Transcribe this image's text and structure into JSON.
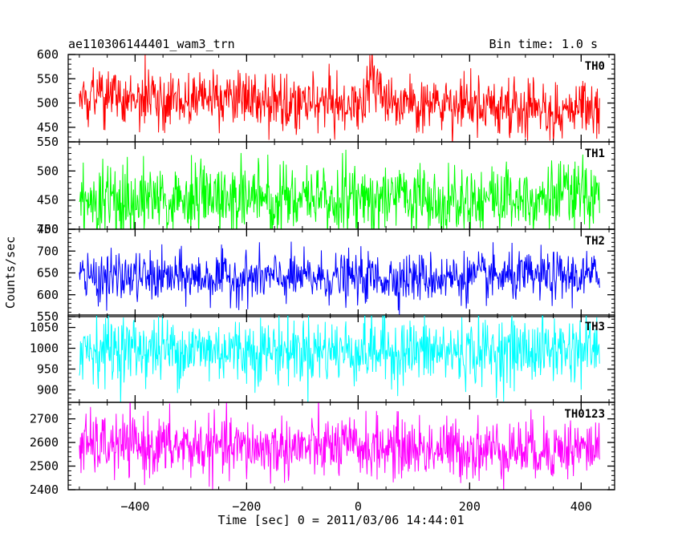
{
  "header": {
    "title": "ae110306144401_wam3_trn",
    "bin_time": "Bin time: 1.0 s"
  },
  "axes": {
    "ylabel": "Counts/sec",
    "xlabel": "Time [sec] 0 = 2011/03/06 14:44:01"
  },
  "chart_data": {
    "type": "line",
    "title": "ae110306144401_wam3_trn",
    "xlabel": "Time [sec] 0 = 2011/03/06 14:44:01",
    "ylabel": "Counts/sec",
    "xlim": [
      -520,
      460
    ],
    "data_range": [
      -500,
      433
    ],
    "bin_time_sec": 1.0,
    "xticks_major": [
      -400,
      -200,
      0,
      200,
      400
    ],
    "panels": [
      {
        "name": "TH0",
        "color": "#ff0000",
        "ylim": [
          420,
          600
        ],
        "yticks": [
          450,
          500,
          550,
          600
        ],
        "baseline": 505,
        "noise": 28,
        "trend": [
          [
            -500,
            510
          ],
          [
            -400,
            512
          ],
          [
            -250,
            505
          ],
          [
            -100,
            500
          ],
          [
            0,
            500
          ],
          [
            25,
            540
          ],
          [
            50,
            495
          ],
          [
            200,
            490
          ],
          [
            433,
            485
          ]
        ],
        "burst": {
          "t": 25,
          "peak": 595
        }
      },
      {
        "name": "TH1",
        "color": "#00ff00",
        "ylim": [
          400,
          550
        ],
        "yticks": [
          400,
          450,
          500,
          550
        ],
        "baseline": 455,
        "noise": 30,
        "trend": [
          [
            -500,
            450
          ],
          [
            -200,
            452
          ],
          [
            0,
            455
          ],
          [
            200,
            455
          ],
          [
            433,
            458
          ]
        ],
        "burst": null
      },
      {
        "name": "TH2",
        "color": "#0000ff",
        "ylim": [
          550,
          750
        ],
        "yticks": [
          550,
          600,
          650,
          700,
          750
        ],
        "baseline": 640,
        "noise": 28,
        "trend": [
          [
            -500,
            640
          ],
          [
            0,
            638
          ],
          [
            433,
            642
          ]
        ],
        "burst": null
      },
      {
        "name": "TH3",
        "color": "#00ffff",
        "ylim": [
          870,
          1080
        ],
        "yticks": [
          900,
          950,
          1000,
          1050
        ],
        "baseline": 995,
        "noise": 40,
        "trend": [
          [
            -500,
            1000
          ],
          [
            -200,
            995
          ],
          [
            0,
            995
          ],
          [
            200,
            990
          ],
          [
            433,
            1000
          ]
        ],
        "burst": null
      },
      {
        "name": "TH0123",
        "color": "#ff00ff",
        "ylim": [
          2400,
          2770
        ],
        "yticks": [
          2400,
          2500,
          2600,
          2700
        ],
        "baseline": 2580,
        "noise": 65,
        "trend": [
          [
            -500,
            2590
          ],
          [
            -200,
            2575
          ],
          [
            0,
            2580
          ],
          [
            200,
            2570
          ],
          [
            433,
            2575
          ]
        ],
        "burst": null
      }
    ]
  }
}
